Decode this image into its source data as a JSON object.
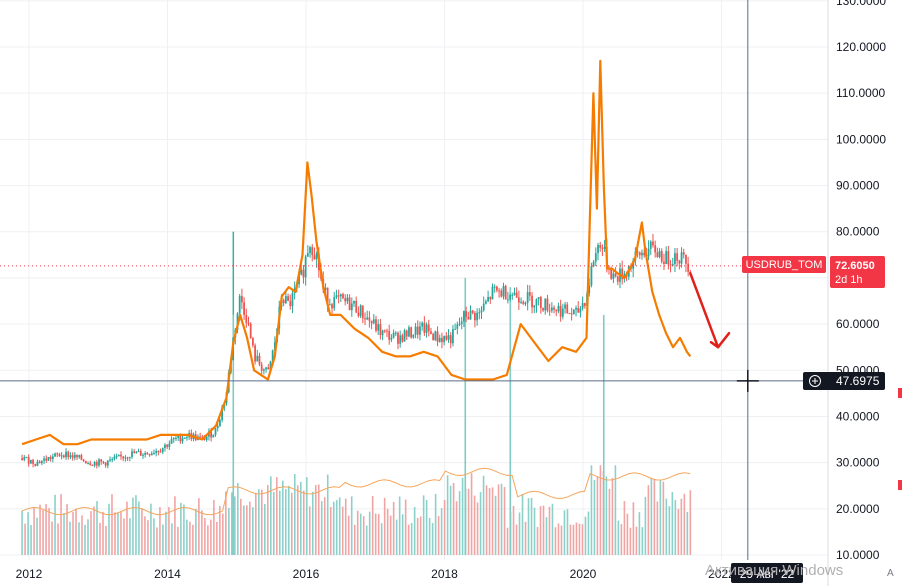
{
  "chart_data": {
    "type": "line",
    "title": "",
    "xlabel": "",
    "ylabel": "",
    "ylim": [
      10,
      130
    ],
    "xlim": [
      2011.8,
      2023.45
    ],
    "y_ticks": [
      "130.0000",
      "120.0000",
      "110.0000",
      "100.0000",
      "90.0000",
      "80.0000",
      "70.0000",
      "60.0000",
      "50.0000",
      "40.0000",
      "30.0000",
      "20.0000",
      "10.0000"
    ],
    "x_ticks": [
      {
        "label": "2012",
        "value": 2012.0
      },
      {
        "label": "2014",
        "value": 2014.0
      },
      {
        "label": "2016",
        "value": 2016.0
      },
      {
        "label": "2018",
        "value": 2018.0
      },
      {
        "label": "2020",
        "value": 2020.0
      },
      {
        "label": "2022",
        "value": 2022.0
      }
    ],
    "grid": true,
    "series": [
      {
        "name": "USDRUB_TOM",
        "kind": "candles",
        "color_up": "#26a69a",
        "color_down": "#ef5350",
        "x": [
          2011.9,
          2012.1,
          2012.3,
          2012.5,
          2012.7,
          2012.9,
          2013.1,
          2013.3,
          2013.5,
          2013.7,
          2013.9,
          2014.1,
          2014.3,
          2014.5,
          2014.7,
          2014.85,
          2014.95,
          2015.05,
          2015.15,
          2015.25,
          2015.35,
          2015.45,
          2015.55,
          2015.65,
          2015.75,
          2015.85,
          2015.95,
          2016.05,
          2016.15,
          2016.25,
          2016.35,
          2016.5,
          2016.7,
          2016.9,
          2017.1,
          2017.3,
          2017.5,
          2017.7,
          2017.9,
          2018.1,
          2018.3,
          2018.5,
          2018.7,
          2018.9,
          2019.1,
          2019.3,
          2019.5,
          2019.7,
          2019.9,
          2020.05,
          2020.15,
          2020.25,
          2020.35,
          2020.45,
          2020.6,
          2020.75,
          2020.9,
          2021.05,
          2021.2,
          2021.35,
          2021.45,
          2021.55
        ],
        "values": [
          31,
          30,
          31,
          32,
          31,
          30,
          30,
          31,
          32,
          32,
          33,
          35,
          36,
          35,
          37,
          45,
          57,
          66,
          61,
          53,
          51,
          49,
          56,
          66,
          64,
          67,
          71,
          78,
          75,
          67,
          65,
          65,
          64,
          61,
          58,
          57,
          58,
          59,
          57,
          57,
          62,
          62,
          67,
          67,
          66,
          65,
          64,
          63,
          62,
          66,
          74,
          78,
          73,
          70,
          71,
          74,
          76,
          76,
          74,
          75,
          74,
          72.6
        ]
      },
      {
        "name": "",
        "kind": "line",
        "color": "#f57c00",
        "x": [
          2011.9,
          2012.1,
          2012.3,
          2012.5,
          2012.7,
          2012.9,
          2013.1,
          2013.3,
          2013.5,
          2013.7,
          2013.9,
          2014.1,
          2014.3,
          2014.5,
          2014.7,
          2014.85,
          2014.95,
          2015.05,
          2015.15,
          2015.25,
          2015.35,
          2015.45,
          2015.55,
          2015.65,
          2015.75,
          2015.85,
          2015.95,
          2016.02,
          2016.08,
          2016.15,
          2016.25,
          2016.35,
          2016.5,
          2016.7,
          2016.9,
          2017.1,
          2017.3,
          2017.5,
          2017.7,
          2017.9,
          2018.1,
          2018.3,
          2018.5,
          2018.7,
          2018.9,
          2019.1,
          2019.3,
          2019.5,
          2019.7,
          2019.9,
          2020.05,
          2020.15,
          2020.2,
          2020.25,
          2020.3,
          2020.35,
          2020.42,
          2020.5,
          2020.6,
          2020.75,
          2020.85,
          2020.9,
          2021.0,
          2021.1,
          2021.2,
          2021.3,
          2021.4,
          2021.5,
          2021.55
        ],
        "values": [
          34,
          35,
          36,
          34,
          34,
          35,
          35,
          35,
          35,
          35,
          36,
          36,
          36,
          35,
          38,
          44,
          56,
          62,
          57,
          50,
          49,
          48,
          53,
          66,
          68,
          67,
          75,
          95,
          88,
          78,
          68,
          62,
          62,
          59,
          57,
          54,
          53,
          53,
          54,
          53,
          49,
          48,
          48,
          48,
          49,
          60,
          56,
          52,
          55,
          54,
          57,
          110,
          85,
          117,
          90,
          72,
          72,
          71,
          70,
          74,
          82,
          76,
          67,
          62,
          58,
          55,
          57,
          54,
          53
        ]
      }
    ],
    "crosshair": {
      "x": 2022.38,
      "y": 47.6975
    }
  },
  "price_label": {
    "symbol": "USDRUB_TOM",
    "price": "72.6050",
    "time": "2d 1h",
    "value": 72.605,
    "color": "#f23645"
  },
  "crosshair_price_label": "47.6975",
  "crosshair_date_label": "29 Авг '22",
  "watermark": "Активация Windows",
  "axis_corner_mark": "A",
  "annotation_arrow": {
    "color": "#e0201a",
    "x_start": 2021.55,
    "y_start": 71.0,
    "x_end": 2021.95,
    "y_end": 55.0
  }
}
